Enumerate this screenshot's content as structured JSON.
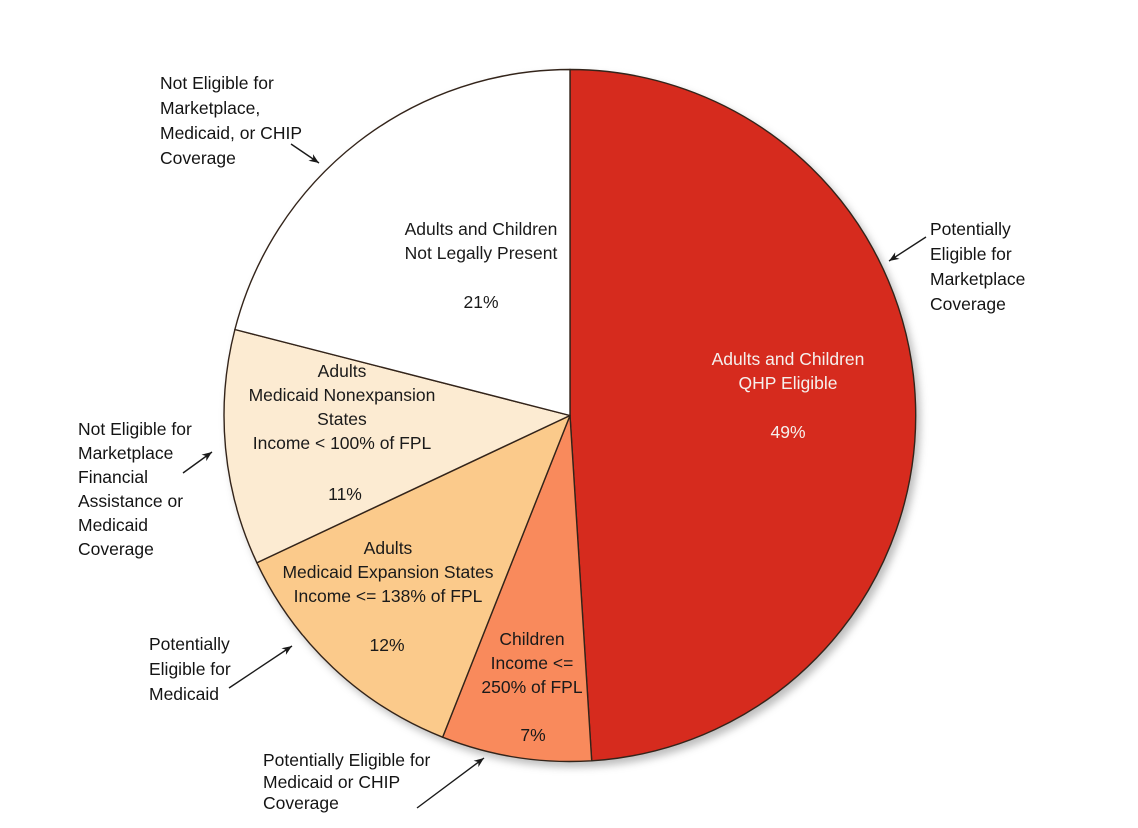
{
  "chart_data": {
    "type": "pie",
    "title": "",
    "direction": "clockwise",
    "start_angle_deg": 0,
    "stroke_color": "#33241a",
    "background_color": "#ffffff",
    "slices": [
      {
        "key": "qhp-eligible",
        "label": "Adults and Children\nQHP Eligible",
        "pct_label": "49%",
        "value": 49,
        "color": "#d62b1e",
        "text_color": "#f5f0ed",
        "callout": "Potentially\nEligible for\nMarketplace\nCoverage"
      },
      {
        "key": "children-chip",
        "label": "Children\nIncome <=\n250% of FPL",
        "pct_label": "7%",
        "value": 7,
        "color": "#f98a5c",
        "text_color": "#1a1a1a",
        "callout": "Potentially Eligible for\nMedicaid or CHIP\nCoverage"
      },
      {
        "key": "medicaid-expansion",
        "label": "Adults\nMedicaid Expansion States\nIncome <= 138% of FPL",
        "pct_label": "12%",
        "value": 12,
        "color": "#fbca8b",
        "text_color": "#1a1a1a",
        "callout": "Potentially\nEligible for\nMedicaid"
      },
      {
        "key": "medicaid-nonexpansion",
        "label": "Adults\nMedicaid Nonexpansion\nStates\nIncome < 100% of FPL",
        "pct_label": "11%",
        "value": 11,
        "color": "#fcebd2",
        "text_color": "#1a1a1a",
        "callout": "Not Eligible for\nMarketplace\nFinancial\nAssistance or\nMedicaid\nCoverage"
      },
      {
        "key": "not-legally-present",
        "label": "Adults and Children\nNot Legally Present",
        "pct_label": "21%",
        "value": 21,
        "color": "#ffffff",
        "text_color": "#1a1a1a",
        "callout": "Not Eligible for\nMarketplace,\nMedicaid, or CHIP\nCoverage"
      }
    ]
  }
}
